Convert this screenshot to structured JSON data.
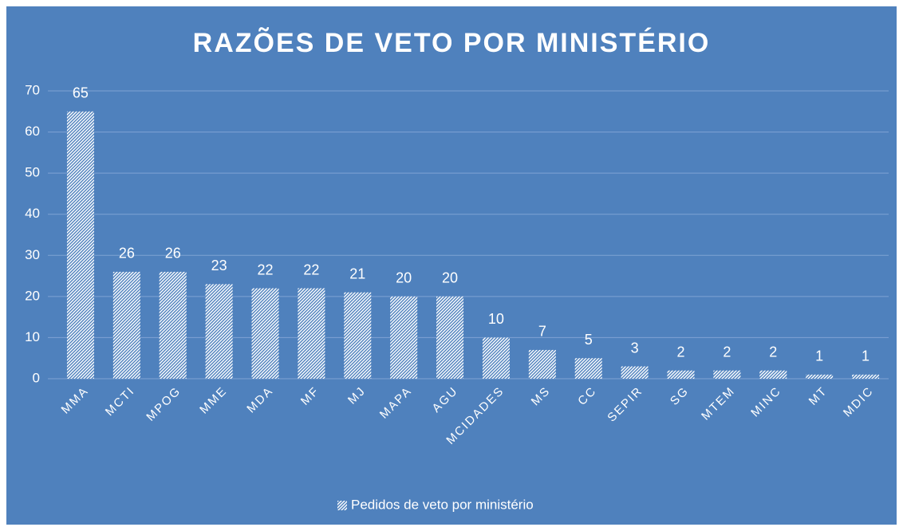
{
  "chart_data": {
    "type": "bar",
    "title": "RAZÕES DE VETO POR MINISTÉRIO",
    "categories": [
      "MMA",
      "MCTI",
      "MPOG",
      "MME",
      "MDA",
      "MF",
      "MJ",
      "MAPA",
      "AGU",
      "MCIDADES",
      "MS",
      "CC",
      "SEPIR",
      "SG",
      "MTEM",
      "MINC",
      "MT",
      "MDIC"
    ],
    "series": [
      {
        "name": "Pedidos de veto por ministério",
        "color": "#ffffff",
        "values": [
          65,
          26,
          26,
          23,
          22,
          22,
          21,
          20,
          20,
          10,
          7,
          5,
          3,
          2,
          2,
          2,
          1,
          1
        ]
      }
    ],
    "ylim": [
      0,
      70
    ],
    "yticks": [
      0,
      10,
      20,
      30,
      40,
      50,
      60,
      70
    ],
    "grid": true,
    "legend": "bottom"
  }
}
